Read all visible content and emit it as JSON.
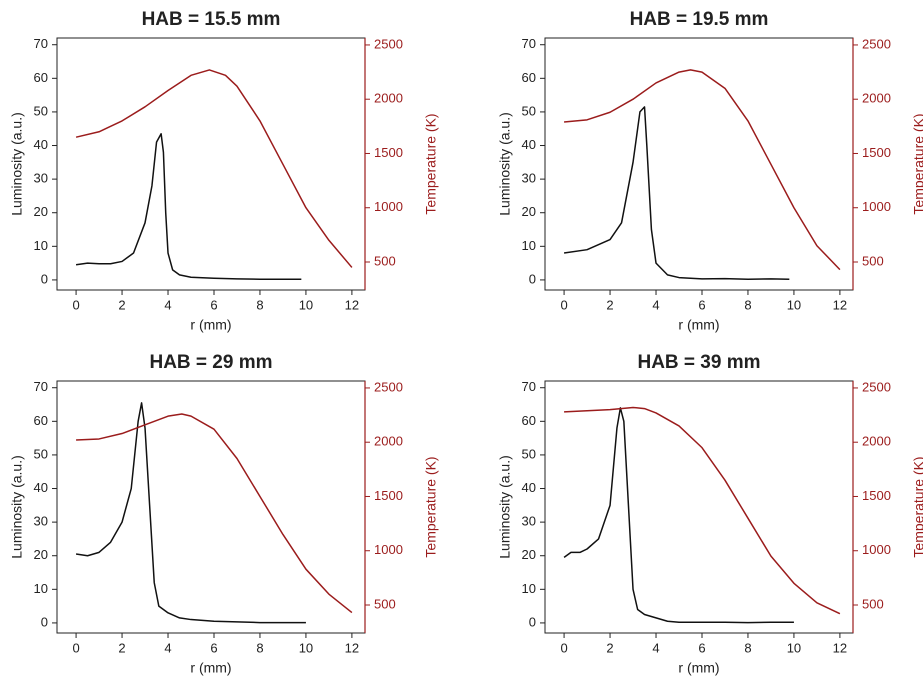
{
  "chart_data": [
    {
      "type": "line",
      "title": "HAB = 15.5 mm",
      "x_label": "r (mm)",
      "y_label": "Luminosity (a.u.)",
      "y2_label": "Temperature (K)",
      "y2_color": "#9b1c1c",
      "xlim": [
        -0.83,
        12.57
      ],
      "xticks": [
        0,
        2,
        4,
        6,
        8,
        10,
        12
      ],
      "ylim": [
        -3,
        72
      ],
      "yticks": [
        0,
        10,
        20,
        30,
        40,
        50,
        60,
        70
      ],
      "y2lim": [
        242,
        2564
      ],
      "y2ticks": [
        500,
        1000,
        1500,
        2000,
        2500
      ],
      "series": [
        {
          "color": "#111111",
          "x": [
            0,
            0.5,
            1,
            1.5,
            2,
            2.5,
            3,
            3.3,
            3.5,
            3.7,
            3.8,
            3.9,
            4.0,
            4.2,
            4.5,
            5,
            6,
            7,
            8,
            9,
            9.8
          ],
          "values": [
            4.5,
            5,
            4.8,
            4.8,
            5.5,
            8,
            17,
            28,
            41,
            43.5,
            38,
            20,
            8,
            3,
            1.5,
            0.8,
            0.5,
            0.3,
            0.2,
            0.2,
            0.2
          ]
        },
        {
          "color": "#9b1c1c",
          "axis": "y2",
          "x": [
            0,
            1,
            2,
            3,
            4,
            5,
            5.8,
            6.5,
            7,
            8,
            9,
            10,
            11,
            12
          ],
          "values": [
            1650,
            1700,
            1800,
            1930,
            2080,
            2220,
            2270,
            2220,
            2120,
            1800,
            1400,
            1000,
            700,
            450
          ]
        }
      ]
    },
    {
      "type": "line",
      "title": "HAB = 19.5 mm",
      "x_label": "r (mm)",
      "y_label": "Luminosity (a.u.)",
      "y2_label": "Temperature (K)",
      "y2_color": "#9b1c1c",
      "xlim": [
        -0.83,
        12.57
      ],
      "xticks": [
        0,
        2,
        4,
        6,
        8,
        10,
        12
      ],
      "ylim": [
        -3,
        72
      ],
      "yticks": [
        0,
        10,
        20,
        30,
        40,
        50,
        60,
        70
      ],
      "y2lim": [
        242,
        2564
      ],
      "y2ticks": [
        500,
        1000,
        1500,
        2000,
        2500
      ],
      "series": [
        {
          "color": "#111111",
          "x": [
            0,
            1,
            2,
            2.5,
            3,
            3.3,
            3.5,
            3.6,
            3.8,
            4,
            4.5,
            5,
            6,
            7,
            8,
            9,
            9.8
          ],
          "values": [
            8,
            9,
            12,
            17,
            35,
            50,
            51.5,
            40,
            15,
            5,
            1.5,
            0.7,
            0.3,
            0.4,
            0.2,
            0.3,
            0.2
          ]
        },
        {
          "color": "#9b1c1c",
          "axis": "y2",
          "x": [
            0,
            1,
            2,
            3,
            4,
            5,
            5.5,
            6,
            7,
            8,
            9,
            10,
            11,
            12
          ],
          "values": [
            1790,
            1810,
            1880,
            2000,
            2150,
            2250,
            2270,
            2250,
            2100,
            1800,
            1400,
            1000,
            650,
            430
          ]
        }
      ]
    },
    {
      "type": "line",
      "title": "HAB = 29 mm",
      "x_label": "r (mm)",
      "y_label": "Luminosity (a.u.)",
      "y2_label": "Temperature (K)",
      "y2_color": "#9b1c1c",
      "xlim": [
        -0.83,
        12.57
      ],
      "xticks": [
        0,
        2,
        4,
        6,
        8,
        10,
        12
      ],
      "ylim": [
        -3,
        72
      ],
      "yticks": [
        0,
        10,
        20,
        30,
        40,
        50,
        60,
        70
      ],
      "y2lim": [
        242,
        2564
      ],
      "y2ticks": [
        500,
        1000,
        1500,
        2000,
        2500
      ],
      "series": [
        {
          "color": "#111111",
          "x": [
            0,
            0.5,
            1,
            1.5,
            2,
            2.4,
            2.7,
            2.85,
            3,
            3.2,
            3.4,
            3.6,
            4,
            4.5,
            5,
            6,
            7,
            8,
            9,
            10
          ],
          "values": [
            20.5,
            20,
            21,
            24,
            30,
            40,
            60,
            65.5,
            58,
            35,
            12,
            5,
            3,
            1.5,
            1,
            0.5,
            0.3,
            0.1,
            0.1,
            0.1
          ]
        },
        {
          "color": "#9b1c1c",
          "axis": "y2",
          "x": [
            0,
            1,
            2,
            3,
            4,
            4.6,
            5,
            6,
            7,
            8,
            9,
            10,
            11,
            12
          ],
          "values": [
            2020,
            2030,
            2080,
            2160,
            2240,
            2260,
            2240,
            2120,
            1850,
            1500,
            1150,
            830,
            600,
            430
          ]
        }
      ]
    },
    {
      "type": "line",
      "title": "HAB = 39 mm",
      "x_label": "r (mm)",
      "y_label": "Luminosity (a.u.)",
      "y2_label": "Temperature (K)",
      "y2_color": "#9b1c1c",
      "xlim": [
        -0.83,
        12.57
      ],
      "xticks": [
        0,
        2,
        4,
        6,
        8,
        10,
        12
      ],
      "ylim": [
        -3,
        72
      ],
      "yticks": [
        0,
        10,
        20,
        30,
        40,
        50,
        60,
        70
      ],
      "y2lim": [
        242,
        2564
      ],
      "y2ticks": [
        500,
        1000,
        1500,
        2000,
        2500
      ],
      "series": [
        {
          "color": "#111111",
          "x": [
            0,
            0.3,
            0.7,
            1,
            1.5,
            2,
            2.3,
            2.45,
            2.6,
            2.8,
            3,
            3.2,
            3.5,
            4,
            4.5,
            5,
            6,
            7,
            8,
            9,
            10
          ],
          "values": [
            19.5,
            21,
            21,
            22,
            25,
            35,
            58,
            64,
            60,
            35,
            10,
            4,
            2.5,
            1.5,
            0.5,
            0.2,
            0.2,
            0.2,
            0.1,
            0.2,
            0.2
          ]
        },
        {
          "color": "#9b1c1c",
          "axis": "y2",
          "x": [
            0,
            1,
            2,
            3,
            3.5,
            4,
            5,
            6,
            7,
            8,
            9,
            10,
            11,
            12
          ],
          "values": [
            2280,
            2290,
            2300,
            2320,
            2310,
            2270,
            2150,
            1950,
            1650,
            1300,
            950,
            700,
            520,
            420
          ]
        }
      ]
    }
  ]
}
